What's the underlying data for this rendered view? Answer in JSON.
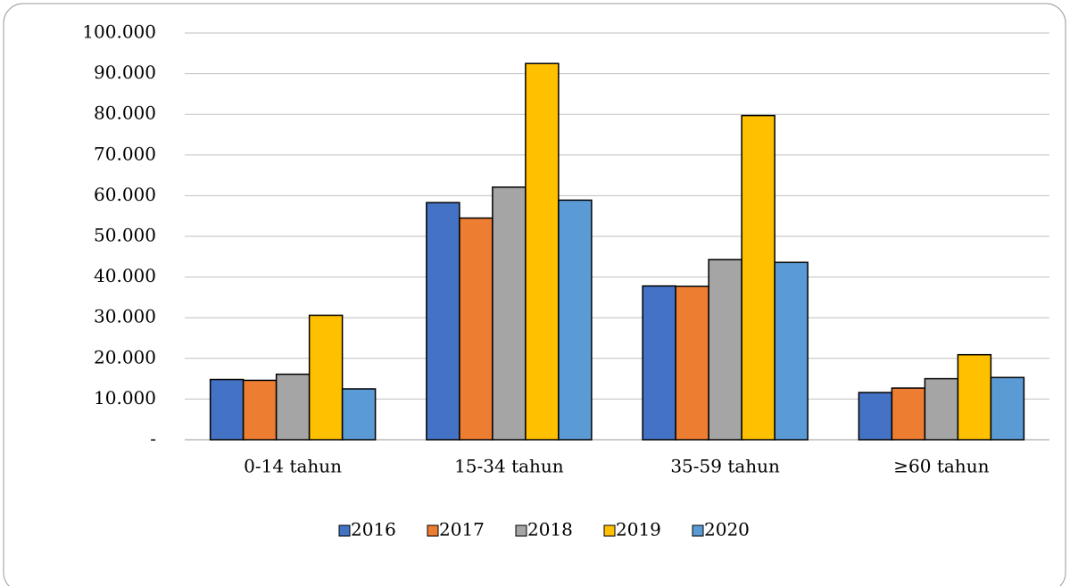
{
  "chart_data": {
    "type": "bar",
    "categories": [
      "0-14 tahun",
      "15-34 tahun",
      "35-59 tahun",
      "≥60 tahun"
    ],
    "series": [
      {
        "name": "2016",
        "color": "#4472c4",
        "values": [
          14800,
          58300,
          37800,
          11600
        ]
      },
      {
        "name": "2017",
        "color": "#ed7d31",
        "values": [
          14600,
          54500,
          37700,
          12700
        ]
      },
      {
        "name": "2018",
        "color": "#a5a5a5",
        "values": [
          16100,
          62100,
          44300,
          15000
        ]
      },
      {
        "name": "2019",
        "color": "#ffc000",
        "values": [
          30600,
          92500,
          79700,
          20900
        ]
      },
      {
        "name": "2020",
        "color": "#5b9bd5",
        "values": [
          12500,
          58900,
          43600,
          15300
        ]
      }
    ],
    "ylim": [
      0,
      100000
    ],
    "yticks": [
      {
        "value": 0,
        "label": "-"
      },
      {
        "value": 10000,
        "label": "10.000"
      },
      {
        "value": 20000,
        "label": "20.000"
      },
      {
        "value": 30000,
        "label": "30.000"
      },
      {
        "value": 40000,
        "label": "40.000"
      },
      {
        "value": 50000,
        "label": "50.000"
      },
      {
        "value": 60000,
        "label": "60.000"
      },
      {
        "value": 70000,
        "label": "70.000"
      },
      {
        "value": 80000,
        "label": "80.000"
      },
      {
        "value": 90000,
        "label": "90.000"
      },
      {
        "value": 100000,
        "label": "100.000"
      }
    ],
    "grid": true,
    "legend": "bottom"
  }
}
